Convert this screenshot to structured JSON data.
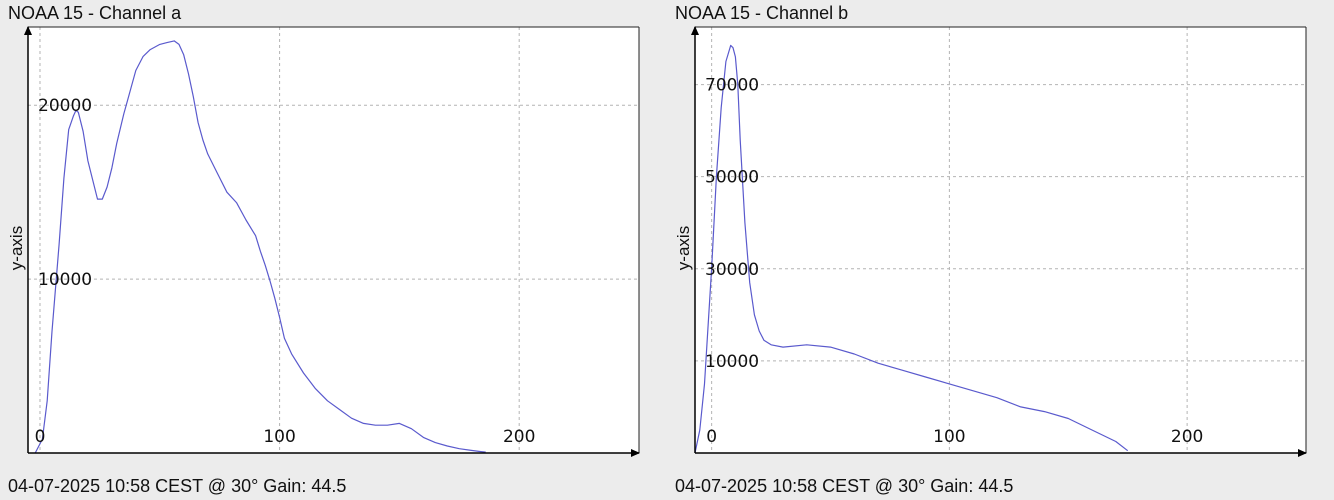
{
  "chart_data": [
    {
      "type": "line",
      "title": "NOAA 15 - Channel a",
      "footer": "04-07-2025 10:58 CEST @ 30° Gain: 44.5",
      "xlabel": "",
      "ylabel": "y-axis",
      "xlim": [
        -5,
        250
      ],
      "ylim": [
        0,
        24500
      ],
      "xticks": [
        0,
        100,
        200
      ],
      "yticks": [
        10000,
        20000
      ],
      "grid": true,
      "line_color": "#5a5acd",
      "series": [
        {
          "x": [
            -2,
            1,
            3,
            5,
            8,
            10,
            12,
            14,
            15,
            16,
            18,
            20,
            22,
            24,
            26,
            28,
            30,
            32,
            35,
            38,
            40,
            43,
            46,
            50,
            53,
            56,
            58,
            60,
            62,
            64,
            66,
            68,
            70,
            74,
            78,
            82,
            86,
            90,
            92,
            94,
            96,
            98,
            100,
            102,
            105,
            110,
            115,
            120,
            125,
            130,
            135,
            140,
            145,
            150,
            155,
            160,
            165,
            170,
            175,
            180,
            184,
            186
          ],
          "y": [
            0,
            800,
            3000,
            7000,
            12000,
            15800,
            18600,
            19400,
            19700,
            19600,
            18500,
            16800,
            15700,
            14600,
            14600,
            15300,
            16400,
            17800,
            19500,
            21000,
            22000,
            22800,
            23200,
            23500,
            23600,
            23700,
            23500,
            22900,
            21800,
            20500,
            19000,
            18000,
            17200,
            16100,
            15000,
            14400,
            13400,
            12500,
            11600,
            10800,
            9900,
            8900,
            7800,
            6600,
            5700,
            4600,
            3700,
            3000,
            2500,
            2000,
            1700,
            1600,
            1600,
            1700,
            1400,
            900,
            600,
            400,
            250,
            150,
            80,
            50
          ]
        }
      ]
    },
    {
      "type": "line",
      "title": "NOAA 15 - Channel b",
      "footer": "04-07-2025 10:58 CEST @ 30° Gain: 44.5",
      "xlabel": "",
      "ylabel": "y-axis",
      "xlim": [
        -7,
        250
      ],
      "ylim": [
        -10000,
        82500
      ],
      "xticks": [
        0,
        100,
        200
      ],
      "yticks": [
        10000,
        30000,
        50000,
        70000
      ],
      "grid": true,
      "line_color": "#5a5acd",
      "series": [
        {
          "x": [
            -7,
            -5,
            -3,
            0,
            2,
            4,
            6,
            8,
            9,
            10,
            11,
            12,
            14,
            16,
            18,
            20,
            22,
            25,
            30,
            40,
            50,
            60,
            70,
            80,
            90,
            100,
            110,
            120,
            130,
            140,
            150,
            160,
            170,
            175
          ],
          "y": [
            -10000,
            -5000,
            5000,
            30000,
            50000,
            65000,
            75000,
            78500,
            78000,
            76000,
            70000,
            58000,
            40000,
            27000,
            20000,
            16500,
            14500,
            13500,
            13000,
            13500,
            13000,
            11500,
            9500,
            8000,
            6500,
            5000,
            3500,
            2000,
            0,
            -1000,
            -2500,
            -5000,
            -7500,
            -9500
          ]
        }
      ]
    }
  ]
}
